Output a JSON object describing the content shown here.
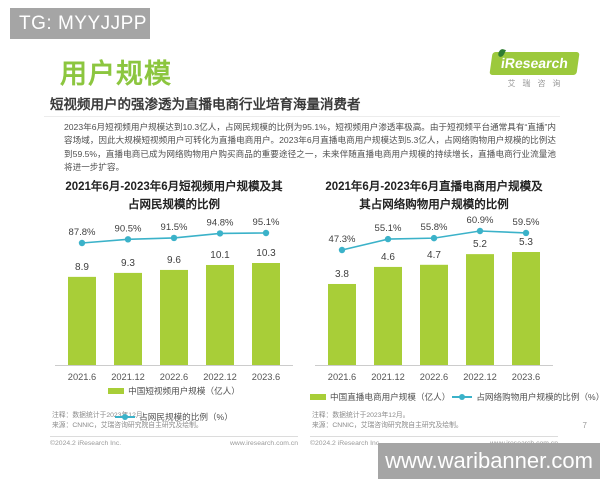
{
  "watermarks": {
    "top": "TG: MYYJJPP",
    "bottom": "www.waribanner.com"
  },
  "header": {
    "title": "用户规模",
    "subtitle": "短视频用户的强渗透为直播电商行业培育海量消费者",
    "logo": {
      "brand": "iResearch",
      "brand_cn": "艾瑞咨询"
    }
  },
  "intro": "2023年6月短视频用户规模达到10.3亿人，占网民规模的比例为95.1%，短视频用户渗透率极高。由于短视频平台通常具有“直播”内容场域，因此大规模短视频用户可转化为直播电商用户。2023年6月直播电商用户规模达到5.3亿人，占网络购物用户规模的比例达到59.5%，直播电商已成为网络购物用户购买商品的重要途径之一，未来伴随直播电商用户规模的持续增长，直播电商行业流量池将进一步扩容。",
  "chart_data": [
    {
      "type": "bar",
      "title": "2021年6月-2023年6月短视频用户规模及其占网民规模的比例",
      "categories": [
        "2021.6",
        "2021.12",
        "2022.6",
        "2022.12",
        "2023.6"
      ],
      "series": [
        {
          "name": "中国短视频用户规模（亿人）",
          "kind": "bar",
          "values": [
            8.9,
            9.3,
            9.6,
            10.1,
            10.3
          ]
        },
        {
          "name": "占网民规模的比例（%）",
          "kind": "line",
          "unit": "%",
          "values": [
            87.8,
            90.5,
            91.5,
            94.8,
            95.1
          ]
        }
      ],
      "legend_position": "bottom",
      "grid": false,
      "notes": [
        "注释：数据统计于2023年12月。",
        "来源：CNNIC，艾瑞咨询研究院自主研究及绘制。"
      ],
      "footer": {
        "copyright": "©2024.2 iResearch Inc.",
        "website": "www.iresearch.com.cn"
      }
    },
    {
      "type": "bar",
      "title": "2021年6月-2023年6月直播电商用户规模及其占网络购物用户规模的比例",
      "categories": [
        "2021.6",
        "2021.12",
        "2022.6",
        "2022.12",
        "2023.6"
      ],
      "series": [
        {
          "name": "中国直播电商用户规模（亿人）",
          "kind": "bar",
          "values": [
            3.8,
            4.6,
            4.7,
            5.2,
            5.3
          ]
        },
        {
          "name": "占网络购物用户规模的比例（%）",
          "kind": "line",
          "unit": "%",
          "values": [
            47.3,
            55.1,
            55.8,
            60.9,
            59.5
          ]
        }
      ],
      "legend_position": "bottom",
      "grid": false,
      "notes": [
        "注释：数据统计于2023年12月。",
        "来源：CNNIC，艾瑞咨询研究院自主研究及绘制。"
      ],
      "footer": {
        "copyright": "©2024.2 iResearch Inc.",
        "website": "www.iresearch.com.cn"
      }
    }
  ],
  "page_number": "7",
  "colors": {
    "bar": "#a8ce38",
    "line": "#3bb2c9",
    "accent_green": "#8cc63f",
    "watermark_gray": "#a5a5a5"
  }
}
